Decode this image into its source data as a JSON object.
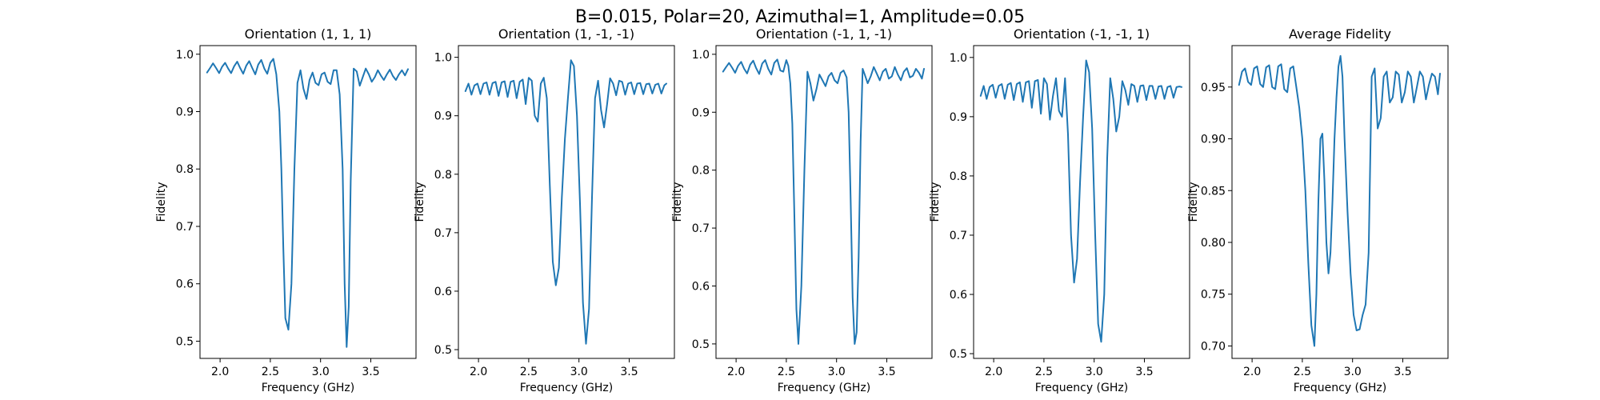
{
  "figure_title": "B=0.015, Polar=20, Azimuthal=1, Amplitude=0.05",
  "line_color": "#1f77b4",
  "chart_data": [
    {
      "type": "line",
      "title": "Orientation (1, 1, 1)",
      "xlabel": "Frequency (GHz)",
      "ylabel": "Fidelity",
      "xlim": [
        1.8,
        3.95
      ],
      "ylim": [
        0.47,
        1.015
      ],
      "xticks": [
        2.0,
        2.5,
        3.0,
        3.5
      ],
      "xtick_labels": [
        "2.0",
        "2.5",
        "3.0",
        "3.5"
      ],
      "yticks": [
        0.5,
        0.6,
        0.7,
        0.8,
        0.9,
        1.0
      ],
      "ytick_labels": [
        "0.5",
        "0.6",
        "0.7",
        "0.8",
        "0.9",
        "1.0"
      ],
      "x": [
        1.87,
        1.9,
        1.93,
        1.96,
        1.99,
        2.02,
        2.05,
        2.08,
        2.11,
        2.14,
        2.17,
        2.2,
        2.23,
        2.26,
        2.29,
        2.32,
        2.35,
        2.38,
        2.41,
        2.44,
        2.47,
        2.5,
        2.53,
        2.56,
        2.59,
        2.61,
        2.63,
        2.65,
        2.68,
        2.71,
        2.74,
        2.77,
        2.8,
        2.83,
        2.86,
        2.89,
        2.92,
        2.95,
        2.98,
        3.01,
        3.04,
        3.07,
        3.1,
        3.13,
        3.16,
        3.19,
        3.22,
        3.24,
        3.26,
        3.28,
        3.3,
        3.33,
        3.36,
        3.39,
        3.42,
        3.45,
        3.48,
        3.51,
        3.54,
        3.57,
        3.6,
        3.63,
        3.66,
        3.69,
        3.72,
        3.75,
        3.78,
        3.81,
        3.84,
        3.87
      ],
      "y": [
        0.968,
        0.976,
        0.984,
        0.976,
        0.967,
        0.978,
        0.985,
        0.975,
        0.967,
        0.979,
        0.987,
        0.976,
        0.966,
        0.98,
        0.988,
        0.976,
        0.965,
        0.982,
        0.99,
        0.975,
        0.966,
        0.985,
        0.992,
        0.965,
        0.9,
        0.8,
        0.66,
        0.54,
        0.52,
        0.6,
        0.8,
        0.95,
        0.972,
        0.94,
        0.922,
        0.955,
        0.968,
        0.95,
        0.946,
        0.965,
        0.968,
        0.952,
        0.948,
        0.972,
        0.972,
        0.93,
        0.8,
        0.6,
        0.49,
        0.56,
        0.78,
        0.975,
        0.97,
        0.945,
        0.96,
        0.975,
        0.965,
        0.952,
        0.96,
        0.972,
        0.963,
        0.955,
        0.965,
        0.973,
        0.962,
        0.955,
        0.965,
        0.972,
        0.963,
        0.974
      ]
    },
    {
      "type": "line",
      "title": "Orientation (1, -1, -1)",
      "xlabel": "Frequency (GHz)",
      "ylabel": "Fidelity",
      "xlim": [
        1.8,
        3.95
      ],
      "ylim": [
        0.485,
        1.02
      ],
      "xticks": [
        2.0,
        2.5,
        3.0,
        3.5
      ],
      "xtick_labels": [
        "2.0",
        "2.5",
        "3.0",
        "3.5"
      ],
      "yticks": [
        0.5,
        0.6,
        0.7,
        0.8,
        0.9,
        1.0
      ],
      "ytick_labels": [
        "0.5",
        "0.6",
        "0.7",
        "0.8",
        "0.9",
        "1.0"
      ],
      "x": [
        1.87,
        1.9,
        1.93,
        1.96,
        1.99,
        2.02,
        2.05,
        2.08,
        2.11,
        2.14,
        2.17,
        2.2,
        2.23,
        2.26,
        2.29,
        2.32,
        2.35,
        2.38,
        2.41,
        2.44,
        2.47,
        2.5,
        2.53,
        2.56,
        2.59,
        2.62,
        2.65,
        2.68,
        2.71,
        2.74,
        2.77,
        2.8,
        2.83,
        2.86,
        2.89,
        2.92,
        2.95,
        2.98,
        3.01,
        3.04,
        3.07,
        3.1,
        3.13,
        3.16,
        3.19,
        3.22,
        3.25,
        3.28,
        3.31,
        3.34,
        3.37,
        3.4,
        3.43,
        3.46,
        3.49,
        3.52,
        3.55,
        3.58,
        3.61,
        3.64,
        3.67,
        3.7,
        3.73,
        3.76,
        3.79,
        3.82,
        3.85,
        3.87
      ],
      "y": [
        0.942,
        0.955,
        0.936,
        0.952,
        0.955,
        0.937,
        0.955,
        0.957,
        0.936,
        0.956,
        0.958,
        0.934,
        0.957,
        0.959,
        0.932,
        0.958,
        0.96,
        0.93,
        0.958,
        0.962,
        0.92,
        0.965,
        0.96,
        0.9,
        0.89,
        0.955,
        0.965,
        0.93,
        0.78,
        0.65,
        0.61,
        0.64,
        0.76,
        0.86,
        0.93,
        0.995,
        0.985,
        0.9,
        0.75,
        0.58,
        0.51,
        0.57,
        0.76,
        0.93,
        0.96,
        0.91,
        0.88,
        0.92,
        0.964,
        0.955,
        0.935,
        0.96,
        0.958,
        0.936,
        0.955,
        0.957,
        0.937,
        0.955,
        0.956,
        0.937,
        0.954,
        0.955,
        0.938,
        0.953,
        0.955,
        0.938,
        0.952,
        0.955
      ]
    },
    {
      "type": "line",
      "title": "Orientation (-1, 1, -1)",
      "xlabel": "Frequency (GHz)",
      "ylabel": "Fidelity",
      "xlim": [
        1.8,
        3.95
      ],
      "ylim": [
        0.475,
        1.015
      ],
      "xticks": [
        2.0,
        2.5,
        3.0,
        3.5
      ],
      "xtick_labels": [
        "2.0",
        "2.5",
        "3.0",
        "3.5"
      ],
      "yticks": [
        0.5,
        0.6,
        0.7,
        0.8,
        0.9,
        1.0
      ],
      "ytick_labels": [
        "0.5",
        "0.6",
        "0.7",
        "0.8",
        "0.9",
        "1.0"
      ],
      "x": [
        1.87,
        1.9,
        1.93,
        1.96,
        1.99,
        2.02,
        2.05,
        2.08,
        2.11,
        2.14,
        2.17,
        2.2,
        2.23,
        2.26,
        2.29,
        2.32,
        2.35,
        2.38,
        2.41,
        2.44,
        2.47,
        2.5,
        2.52,
        2.54,
        2.56,
        2.58,
        2.6,
        2.62,
        2.65,
        2.68,
        2.71,
        2.74,
        2.77,
        2.8,
        2.83,
        2.86,
        2.89,
        2.92,
        2.95,
        2.98,
        3.01,
        3.04,
        3.07,
        3.1,
        3.12,
        3.14,
        3.16,
        3.18,
        3.2,
        3.22,
        3.24,
        3.26,
        3.28,
        3.31,
        3.34,
        3.37,
        3.4,
        3.43,
        3.46,
        3.49,
        3.52,
        3.55,
        3.58,
        3.61,
        3.64,
        3.67,
        3.7,
        3.73,
        3.76,
        3.79,
        3.82,
        3.85,
        3.87
      ],
      "y": [
        0.97,
        0.978,
        0.985,
        0.977,
        0.968,
        0.98,
        0.987,
        0.975,
        0.967,
        0.982,
        0.989,
        0.976,
        0.966,
        0.984,
        0.99,
        0.975,
        0.965,
        0.985,
        0.991,
        0.972,
        0.97,
        0.99,
        0.98,
        0.95,
        0.88,
        0.72,
        0.56,
        0.5,
        0.6,
        0.8,
        0.97,
        0.95,
        0.92,
        0.94,
        0.965,
        0.955,
        0.945,
        0.962,
        0.968,
        0.955,
        0.95,
        0.968,
        0.972,
        0.96,
        0.9,
        0.75,
        0.58,
        0.5,
        0.52,
        0.65,
        0.85,
        0.975,
        0.965,
        0.95,
        0.962,
        0.978,
        0.967,
        0.955,
        0.97,
        0.975,
        0.958,
        0.962,
        0.978,
        0.965,
        0.955,
        0.97,
        0.976,
        0.96,
        0.963,
        0.975,
        0.968,
        0.958,
        0.975
      ]
    },
    {
      "type": "line",
      "title": "Orientation (-1, -1, 1)",
      "xlabel": "Frequency (GHz)",
      "ylabel": "Fidelity",
      "xlim": [
        1.8,
        3.95
      ],
      "ylim": [
        0.492,
        1.02
      ],
      "xticks": [
        2.0,
        2.5,
        3.0,
        3.5
      ],
      "xtick_labels": [
        "2.0",
        "2.5",
        "3.0",
        "3.5"
      ],
      "yticks": [
        0.5,
        0.6,
        0.7,
        0.8,
        0.9,
        1.0
      ],
      "ytick_labels": [
        "0.5",
        "0.6",
        "0.7",
        "0.8",
        "0.9",
        "1.0"
      ],
      "x": [
        1.87,
        1.9,
        1.93,
        1.96,
        1.99,
        2.02,
        2.05,
        2.08,
        2.11,
        2.14,
        2.17,
        2.2,
        2.23,
        2.26,
        2.29,
        2.32,
        2.35,
        2.38,
        2.41,
        2.44,
        2.47,
        2.5,
        2.53,
        2.56,
        2.59,
        2.62,
        2.65,
        2.68,
        2.71,
        2.74,
        2.77,
        2.8,
        2.83,
        2.86,
        2.89,
        2.92,
        2.95,
        2.98,
        3.01,
        3.04,
        3.07,
        3.1,
        3.13,
        3.16,
        3.19,
        3.22,
        3.25,
        3.28,
        3.31,
        3.34,
        3.37,
        3.4,
        3.43,
        3.46,
        3.49,
        3.52,
        3.55,
        3.58,
        3.61,
        3.64,
        3.67,
        3.7,
        3.73,
        3.76,
        3.79,
        3.82,
        3.85,
        3.87
      ],
      "y": [
        0.935,
        0.952,
        0.93,
        0.95,
        0.954,
        0.932,
        0.952,
        0.955,
        0.93,
        0.954,
        0.957,
        0.928,
        0.955,
        0.958,
        0.925,
        0.958,
        0.96,
        0.915,
        0.96,
        0.962,
        0.905,
        0.965,
        0.955,
        0.895,
        0.935,
        0.965,
        0.91,
        0.9,
        0.965,
        0.87,
        0.7,
        0.62,
        0.66,
        0.79,
        0.9,
        0.995,
        0.975,
        0.88,
        0.7,
        0.55,
        0.52,
        0.6,
        0.83,
        0.965,
        0.93,
        0.875,
        0.9,
        0.96,
        0.945,
        0.92,
        0.955,
        0.952,
        0.925,
        0.952,
        0.953,
        0.928,
        0.952,
        0.952,
        0.93,
        0.951,
        0.952,
        0.93,
        0.95,
        0.952,
        0.932,
        0.95,
        0.951,
        0.95
      ]
    },
    {
      "type": "line",
      "title": "Average Fidelity",
      "xlabel": "Frequency (GHz)",
      "ylabel": "Fidelity",
      "xlim": [
        1.8,
        3.95
      ],
      "ylim": [
        0.688,
        0.99
      ],
      "xticks": [
        2.0,
        2.5,
        3.0,
        3.5
      ],
      "xtick_labels": [
        "2.0",
        "2.5",
        "3.0",
        "3.5"
      ],
      "yticks": [
        0.7,
        0.75,
        0.8,
        0.85,
        0.9,
        0.95
      ],
      "ytick_labels": [
        "0.70",
        "0.75",
        "0.80",
        "0.85",
        "0.90",
        "0.95"
      ],
      "x": [
        1.87,
        1.9,
        1.93,
        1.96,
        1.99,
        2.02,
        2.05,
        2.08,
        2.11,
        2.14,
        2.17,
        2.2,
        2.23,
        2.26,
        2.29,
        2.32,
        2.35,
        2.38,
        2.41,
        2.44,
        2.47,
        2.5,
        2.53,
        2.56,
        2.59,
        2.62,
        2.64,
        2.66,
        2.68,
        2.7,
        2.72,
        2.74,
        2.76,
        2.78,
        2.8,
        2.82,
        2.84,
        2.86,
        2.88,
        2.9,
        2.92,
        2.95,
        2.98,
        3.01,
        3.04,
        3.07,
        3.1,
        3.13,
        3.16,
        3.19,
        3.22,
        3.25,
        3.28,
        3.31,
        3.34,
        3.37,
        3.4,
        3.43,
        3.46,
        3.49,
        3.52,
        3.55,
        3.58,
        3.61,
        3.64,
        3.67,
        3.7,
        3.73,
        3.76,
        3.79,
        3.82,
        3.85,
        3.87
      ],
      "y": [
        0.952,
        0.965,
        0.968,
        0.955,
        0.952,
        0.968,
        0.97,
        0.953,
        0.95,
        0.969,
        0.971,
        0.95,
        0.948,
        0.97,
        0.972,
        0.948,
        0.945,
        0.968,
        0.97,
        0.95,
        0.93,
        0.9,
        0.85,
        0.78,
        0.72,
        0.7,
        0.75,
        0.84,
        0.9,
        0.905,
        0.86,
        0.8,
        0.77,
        0.79,
        0.84,
        0.9,
        0.94,
        0.97,
        0.98,
        0.96,
        0.9,
        0.83,
        0.77,
        0.73,
        0.715,
        0.716,
        0.73,
        0.74,
        0.79,
        0.96,
        0.968,
        0.91,
        0.92,
        0.96,
        0.965,
        0.935,
        0.94,
        0.965,
        0.962,
        0.935,
        0.945,
        0.965,
        0.96,
        0.935,
        0.95,
        0.965,
        0.96,
        0.938,
        0.952,
        0.963,
        0.96,
        0.943,
        0.963
      ]
    }
  ]
}
